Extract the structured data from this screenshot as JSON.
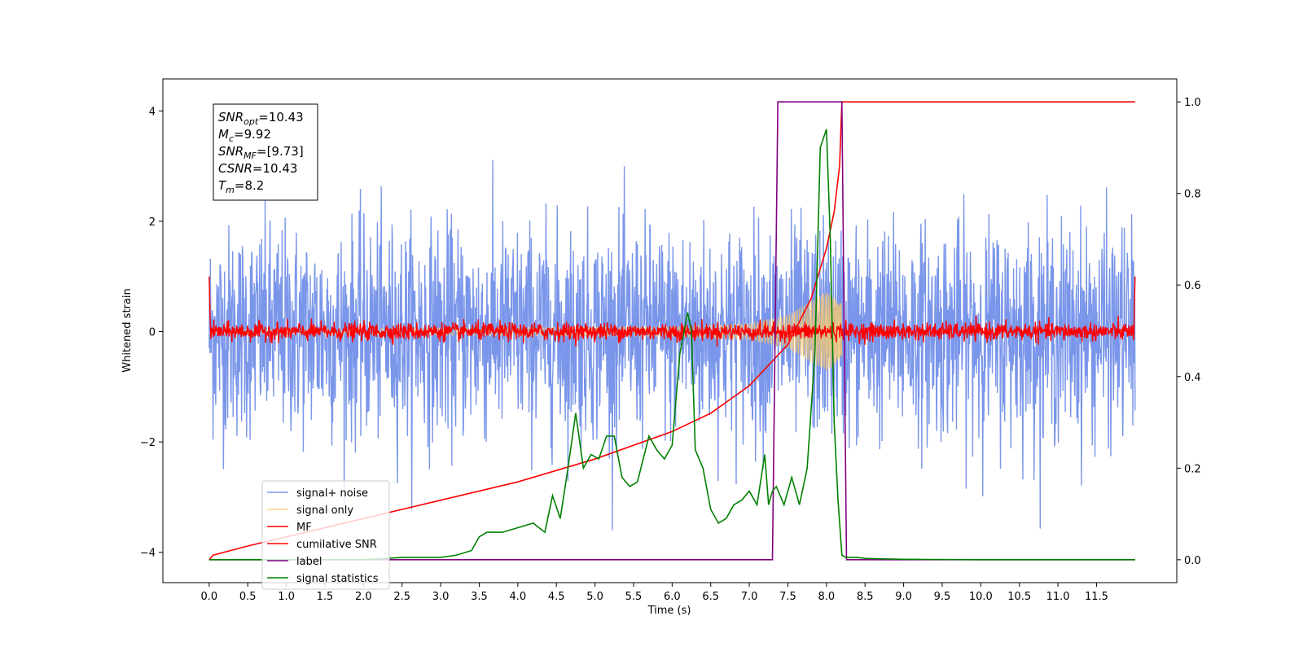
{
  "chart_data": {
    "type": "line",
    "xlabel": "Time (s)",
    "ylabel": "Whitened strain",
    "xlim": [
      -0.6,
      12.54
    ],
    "ylim": [
      -4.55,
      4.58
    ],
    "ylim_right": [
      -0.05,
      1.05
    ],
    "x_ticks": [
      "0.0",
      "0.5",
      "1.0",
      "1.5",
      "2.0",
      "2.5",
      "3.0",
      "3.5",
      "4.0",
      "4.5",
      "5.0",
      "5.5",
      "6.0",
      "6.5",
      "7.0",
      "7.5",
      "8.0",
      "8.5",
      "9.0",
      "9.5",
      "10.0",
      "10.5",
      "11.0",
      "11.5"
    ],
    "y_ticks_left": [
      "4",
      "2",
      "0",
      "−2",
      "−4"
    ],
    "y_ticks_right": [
      "1.0",
      "0.8",
      "0.6",
      "0.4",
      "0.2",
      "0.0"
    ],
    "legend_position": "lower-left",
    "series": [
      {
        "name": "signal+ noise",
        "color": "#4169e1",
        "axis": "left",
        "kind": "noise",
        "amplitude_std": 1.0,
        "x_range": [
          0,
          12
        ]
      },
      {
        "name": "signal only",
        "color": "#f5c76e",
        "axis": "left",
        "kind": "chirp",
        "x_range": [
          0,
          8.2
        ],
        "envelope": {
          "x": [
            0,
            6.0,
            7.0,
            7.5,
            8.0,
            8.2
          ],
          "y": [
            0.04,
            0.09,
            0.14,
            0.3,
            0.72,
            0.5
          ]
        }
      },
      {
        "name": "MF",
        "color": "#ff0000",
        "axis": "left",
        "kind": "noise",
        "amplitude_std": 0.08,
        "x_range": [
          0,
          12
        ],
        "edge_value": 1.0
      },
      {
        "name": "cumilative SNR",
        "color": "#ff0000",
        "axis": "right",
        "x": [
          0,
          0.05,
          0.5,
          1,
          2,
          3,
          4,
          5,
          6,
          6.5,
          7,
          7.5,
          7.8,
          8.0,
          8.1,
          8.17,
          8.2,
          12
        ],
        "y": [
          0.0,
          0.01,
          0.03,
          0.05,
          0.09,
          0.13,
          0.17,
          0.22,
          0.28,
          0.32,
          0.38,
          0.47,
          0.57,
          0.68,
          0.76,
          0.86,
          1.0,
          1.0
        ]
      },
      {
        "name": "label",
        "color": "#800080",
        "axis": "right",
        "x": [
          0,
          7.3,
          7.37,
          8.2,
          8.26,
          12
        ],
        "y": [
          0,
          0,
          1,
          1,
          0,
          0
        ]
      },
      {
        "name": "signal statistics",
        "color": "#008000",
        "axis": "right",
        "x": [
          0,
          0.5,
          1,
          1.5,
          2,
          2.5,
          3,
          3.2,
          3.4,
          3.5,
          3.6,
          3.8,
          4,
          4.2,
          4.35,
          4.45,
          4.55,
          4.65,
          4.75,
          4.85,
          4.95,
          5.05,
          5.15,
          5.25,
          5.35,
          5.45,
          5.55,
          5.7,
          5.8,
          5.9,
          6.0,
          6.1,
          6.2,
          6.25,
          6.3,
          6.4,
          6.5,
          6.6,
          6.7,
          6.8,
          6.9,
          7.0,
          7.1,
          7.2,
          7.25,
          7.3,
          7.35,
          7.45,
          7.55,
          7.65,
          7.75,
          7.85,
          7.92,
          8.0,
          8.05,
          8.1,
          8.15,
          8.2,
          8.25,
          8.4,
          8.5,
          8.7,
          9,
          10,
          11,
          12
        ],
        "y": [
          0.0,
          0.0,
          0.0,
          0.0,
          0.0,
          0.005,
          0.005,
          0.01,
          0.02,
          0.05,
          0.06,
          0.06,
          0.07,
          0.08,
          0.06,
          0.14,
          0.09,
          0.2,
          0.32,
          0.2,
          0.23,
          0.22,
          0.27,
          0.27,
          0.18,
          0.16,
          0.17,
          0.27,
          0.24,
          0.22,
          0.25,
          0.45,
          0.54,
          0.5,
          0.24,
          0.2,
          0.11,
          0.08,
          0.09,
          0.12,
          0.13,
          0.15,
          0.12,
          0.23,
          0.12,
          0.15,
          0.16,
          0.12,
          0.18,
          0.12,
          0.2,
          0.45,
          0.9,
          0.94,
          0.7,
          0.3,
          0.13,
          0.01,
          0.005,
          0.005,
          0.003,
          0.002,
          0.001,
          0.0,
          0.0,
          0.0
        ]
      }
    ],
    "annotation": {
      "lines": [
        {
          "base": "SNR",
          "sub": "opt",
          "value": "=10.43"
        },
        {
          "base": "M",
          "sub": "c",
          "value": "=9.92"
        },
        {
          "base": "SNR",
          "sub": "MF",
          "value": "=[9.73]"
        },
        {
          "base": "CSNR",
          "sub": "",
          "value": "=10.43"
        },
        {
          "base": "T",
          "sub": "m",
          "value": "=8.2"
        }
      ]
    }
  }
}
